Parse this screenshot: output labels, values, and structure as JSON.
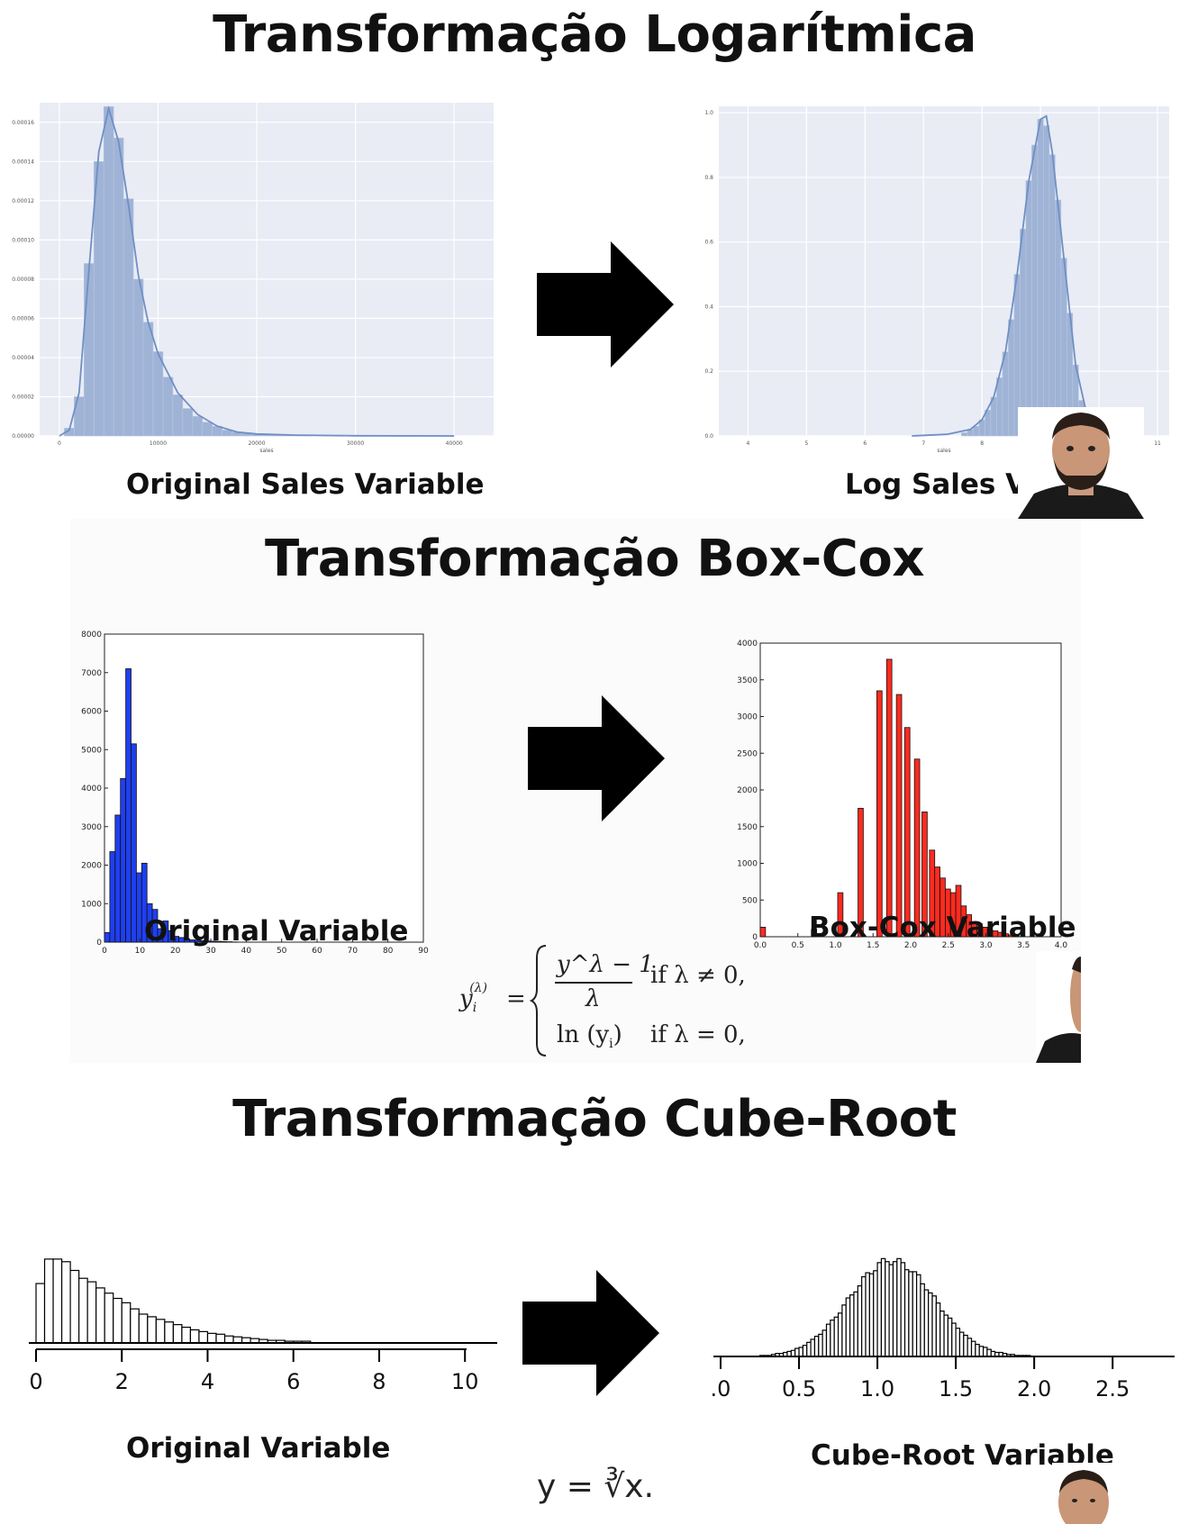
{
  "sections": {
    "log": {
      "title": "Transformação Logarítmica",
      "left_caption": "Original Sales Variable",
      "right_caption": "Log Sales Variable"
    },
    "boxcox": {
      "title": "Transformação Box-Cox",
      "left_caption": "Original Variable",
      "right_caption": "Box-Cox Variable",
      "formula": {
        "lhs": "y",
        "case1_num": "y^λ − 1",
        "case1_den": "λ",
        "case1_cond": "if λ ≠ 0,",
        "case2_expr": "ln (y",
        "case2_cond": "if λ = 0,"
      }
    },
    "cube": {
      "title": "Transformação Cube-Root",
      "left_caption": "Original Variable",
      "right_caption": "Cube-Root Variable",
      "formula": "y = ∛x."
    }
  },
  "colors": {
    "seaborn_bg": "#e9ecf5",
    "seaborn_bar": "#9fb3d6",
    "seaborn_line": "#6f8fc4",
    "blue_bar": "#1f3ff0",
    "red_bar": "#ff2b1f",
    "arrow": "#000000"
  },
  "chart_data": [
    {
      "id": "orig-sales",
      "type": "bar",
      "style": "seaborn-hist-kde",
      "xlabel": "sales",
      "xlim": [
        -2000,
        44000
      ],
      "ylim": [
        0,
        0.00017
      ],
      "xticks": [
        0,
        10000,
        20000,
        30000,
        40000
      ],
      "yticks": [
        0,
        2e-05,
        4e-05,
        6e-05,
        8e-05,
        0.0001,
        0.00012,
        0.00014,
        0.00016
      ],
      "ytick_labels": [
        "0.00000",
        "0.00002",
        "0.00004",
        "0.00006",
        "0.00008",
        "0.00010",
        "0.00012",
        "0.00014",
        "0.00016"
      ],
      "bin_width": 1000,
      "x": [
        1000,
        2000,
        3000,
        4000,
        5000,
        6000,
        7000,
        8000,
        9000,
        10000,
        11000,
        12000,
        13000,
        14000,
        15000,
        16000,
        17000,
        18000,
        19000,
        20000,
        21000,
        22000,
        23000,
        24000,
        25000
      ],
      "values": [
        4e-06,
        2e-05,
        8.8e-05,
        0.00014,
        0.000168,
        0.000152,
        0.000121,
        8e-05,
        5.8e-05,
        4.3e-05,
        3e-05,
        2.1e-05,
        1.4e-05,
        1e-05,
        7e-06,
        5e-06,
        3e-06,
        2e-06,
        1.5e-06,
        1e-06,
        8e-07,
        6e-07,
        4e-07,
        3e-07,
        2e-07
      ],
      "kde": [
        [
          0,
          0
        ],
        [
          1000,
          3e-06
        ],
        [
          2000,
          2.2e-05
        ],
        [
          3000,
          8.5e-05
        ],
        [
          4000,
          0.000145
        ],
        [
          5000,
          0.000167
        ],
        [
          6000,
          0.00015
        ],
        [
          7000,
          0.000118
        ],
        [
          8000,
          8.2e-05
        ],
        [
          9000,
          5.8e-05
        ],
        [
          10000,
          4.2e-05
        ],
        [
          12000,
          2.2e-05
        ],
        [
          14000,
          1.1e-05
        ],
        [
          16000,
          5e-06
        ],
        [
          18000,
          2e-06
        ],
        [
          20000,
          1e-06
        ],
        [
          24000,
          4e-07
        ],
        [
          30000,
          1e-07
        ],
        [
          40000,
          0
        ]
      ]
    },
    {
      "id": "log-sales",
      "type": "bar",
      "style": "seaborn-hist-kde",
      "xlabel": "sales",
      "xlim": [
        3.5,
        11.2
      ],
      "ylim": [
        0,
        1.02
      ],
      "xticks": [
        4,
        5,
        6,
        7,
        8,
        9,
        10,
        11
      ],
      "yticks": [
        0,
        0.2,
        0.4,
        0.6,
        0.8,
        1.0
      ],
      "ytick_labels": [
        "0.0",
        "0.2",
        "0.4",
        "0.6",
        "0.8",
        "1.0"
      ],
      "bin_width": 0.1,
      "x": [
        7.7,
        7.8,
        7.9,
        8.0,
        8.1,
        8.2,
        8.3,
        8.4,
        8.5,
        8.6,
        8.7,
        8.8,
        8.9,
        9.0,
        9.1,
        9.2,
        9.3,
        9.4,
        9.5,
        9.6,
        9.7,
        9.8,
        9.9,
        10.0
      ],
      "values": [
        0.01,
        0.02,
        0.03,
        0.05,
        0.08,
        0.12,
        0.18,
        0.26,
        0.36,
        0.5,
        0.64,
        0.79,
        0.9,
        0.98,
        0.96,
        0.87,
        0.73,
        0.55,
        0.38,
        0.22,
        0.11,
        0.05,
        0.02,
        0.01
      ],
      "kde": [
        [
          6.8,
          0
        ],
        [
          7.4,
          0.005
        ],
        [
          7.8,
          0.02
        ],
        [
          8.0,
          0.05
        ],
        [
          8.2,
          0.12
        ],
        [
          8.4,
          0.26
        ],
        [
          8.6,
          0.5
        ],
        [
          8.8,
          0.79
        ],
        [
          9.0,
          0.98
        ],
        [
          9.1,
          0.99
        ],
        [
          9.2,
          0.88
        ],
        [
          9.4,
          0.55
        ],
        [
          9.6,
          0.22
        ],
        [
          9.8,
          0.06
        ],
        [
          10.0,
          0.015
        ],
        [
          10.4,
          0
        ]
      ]
    },
    {
      "id": "boxcox-orig",
      "type": "bar",
      "style": "matplotlib-classic",
      "xlim": [
        0,
        90
      ],
      "ylim": [
        0,
        8000
      ],
      "xticks": [
        0,
        10,
        20,
        30,
        40,
        50,
        60,
        70,
        80,
        90
      ],
      "yticks": [
        0,
        1000,
        2000,
        3000,
        4000,
        5000,
        6000,
        7000,
        8000
      ],
      "bin_width": 1.5,
      "x": [
        0,
        1.5,
        3,
        4.5,
        6,
        7.5,
        9,
        10.5,
        12,
        13.5,
        15,
        16.5,
        18,
        19.5,
        21,
        22.5,
        24,
        25.5,
        27,
        28.5,
        30,
        31.5,
        33,
        34.5,
        36
      ],
      "values": [
        250,
        2350,
        3300,
        4250,
        7100,
        5150,
        1800,
        2050,
        1000,
        850,
        350,
        550,
        300,
        150,
        120,
        90,
        60,
        50,
        40,
        30,
        25,
        20,
        15,
        10,
        5
      ]
    },
    {
      "id": "boxcox-transformed",
      "type": "bar",
      "style": "matplotlib-classic",
      "xlim": [
        0,
        4.0
      ],
      "ylim": [
        0,
        4000
      ],
      "xticks": [
        0,
        0.5,
        1.0,
        1.5,
        2.0,
        2.5,
        3.0,
        3.5,
        4.0
      ],
      "xtick_labels": [
        "0.0",
        "0.5",
        "1.0",
        "1.5",
        "2.0",
        "2.5",
        "3.0",
        "3.5",
        "4.0"
      ],
      "yticks": [
        0,
        500,
        1000,
        1500,
        2000,
        2500,
        3000,
        3500,
        4000
      ],
      "bin_width": 0.07,
      "x": [
        0.0,
        0.68,
        1.03,
        1.3,
        1.55,
        1.68,
        1.81,
        1.92,
        2.05,
        2.15,
        2.25,
        2.32,
        2.39,
        2.46,
        2.53,
        2.6,
        2.67,
        2.74,
        2.81,
        2.88,
        2.95,
        3.02,
        3.09,
        3.16,
        3.23,
        3.3,
        3.37
      ],
      "values": [
        130,
        100,
        600,
        1750,
        3350,
        3780,
        3300,
        2850,
        2420,
        1700,
        1180,
        950,
        800,
        650,
        600,
        700,
        420,
        300,
        200,
        180,
        130,
        100,
        80,
        60,
        40,
        25,
        15
      ]
    },
    {
      "id": "cube-orig",
      "type": "bar",
      "style": "outline",
      "xlim": [
        0,
        10.5
      ],
      "ylim": [
        0,
        100
      ],
      "xticks": [
        0,
        2,
        4,
        6,
        8,
        10
      ],
      "bin_width": 0.2,
      "x": [
        0,
        0.2,
        0.4,
        0.6,
        0.8,
        1.0,
        1.2,
        1.4,
        1.6,
        1.8,
        2.0,
        2.2,
        2.4,
        2.6,
        2.8,
        3.0,
        3.2,
        3.4,
        3.6,
        3.8,
        4.0,
        4.2,
        4.4,
        4.6,
        4.8,
        5.0,
        5.2,
        5.4,
        5.6,
        5.8,
        6.0,
        6.2
      ],
      "values": [
        68,
        96,
        96,
        93,
        83,
        74,
        70,
        63,
        57,
        51,
        46,
        39,
        33,
        30,
        27,
        24,
        21,
        18,
        15,
        13,
        11,
        10,
        8,
        7,
        6,
        5,
        4,
        3,
        3,
        2,
        2,
        2
      ]
    },
    {
      "id": "cube-transformed",
      "type": "bar",
      "style": "outline",
      "xlim": [
        0,
        2.7
      ],
      "ylim": [
        0,
        100
      ],
      "xticks": [
        0,
        0.5,
        1.0,
        1.5,
        2.0,
        2.5
      ],
      "xtick_labels": [
        ".0",
        "0.5",
        "1.0",
        "1.5",
        "2.0",
        "2.5"
      ],
      "bin_width": 0.025,
      "x": [],
      "values": []
    }
  ]
}
